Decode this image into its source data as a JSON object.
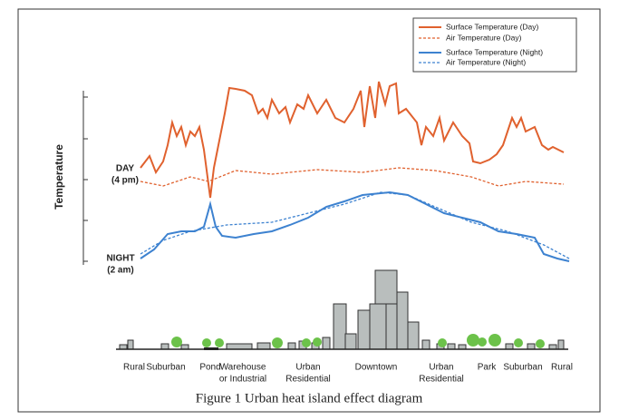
{
  "legend": [
    "Surface Temperature (Day)",
    "Air Temperature  (Day)",
    "Surface Temperature (Night)",
    "Air Temperature (Night)"
  ],
  "y_axis_label": "Temperature",
  "annotations": [
    [
      "DAY",
      "(4 pm)"
    ],
    [
      "NIGHT",
      "(2 am)"
    ]
  ],
  "zones": [
    [
      "Rural"
    ],
    [
      "Suburban"
    ],
    [
      "Pond"
    ],
    [
      "Warehouse",
      "or Industrial"
    ],
    [
      "Urban",
      "Residential"
    ],
    [
      "Downtown"
    ],
    [
      "Urban",
      "Residential"
    ],
    [
      "Park"
    ],
    [
      "Suburban"
    ],
    [
      "Rural"
    ]
  ],
  "caption": "Figure 1 Urban heat island effect diagram"
}
